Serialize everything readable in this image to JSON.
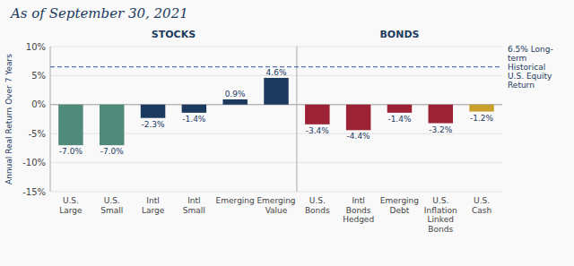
{
  "chart_data": {
    "type": "bar",
    "title": "As of September 30, 2021",
    "categories": [
      "U.S.\nLarge",
      "U.S.\nSmall",
      "Intl\nLarge",
      "Intl\nSmall",
      "Emerging",
      "Emerging\nValue",
      "U.S.\nBonds",
      "Intl\nBonds\nHedged",
      "Emerging\nDebt",
      "U.S.\nInflation\nLinked\nBonds",
      "U.S.\nCash"
    ],
    "values": [
      -7.0,
      -7.0,
      -2.3,
      -1.4,
      0.9,
      4.6,
      -3.4,
      -4.4,
      -1.4,
      -3.2,
      -1.2
    ],
    "value_labels": [
      "-7.0%",
      "-7.0%",
      "-2.3%",
      "-1.4%",
      "0.9%",
      "4.6%",
      "-3.4%",
      "-4.4%",
      "-1.4%",
      "-3.2%",
      "-1.2%"
    ],
    "colors": [
      "#4f8a7a",
      "#4f8a7a",
      "#1c3a5e",
      "#1c3a5e",
      "#1c3a5e",
      "#1c3a5e",
      "#9b2335",
      "#9b2335",
      "#9b2335",
      "#9b2335",
      "#c8a02a"
    ],
    "ylabel": "Annual Real Return Over 7 Years",
    "ylim": [
      -15,
      10
    ],
    "yticks": [
      {
        "value": -15,
        "label": "-15%"
      },
      {
        "value": -10,
        "label": "-10%"
      },
      {
        "value": -5,
        "label": "-5%"
      },
      {
        "value": 0,
        "label": "0%"
      },
      {
        "value": 5,
        "label": "5%"
      },
      {
        "value": 10,
        "label": "10%"
      }
    ],
    "grid": true,
    "data_labels": true,
    "hline": {
      "value": 6.5,
      "label": "6.5% Long-\nterm\nHistorical\nU.S. Equity\nReturn",
      "color": "#5577aa"
    },
    "divider": 5.5,
    "annotations": [
      {
        "text": "STOCKS",
        "x": 2.5
      },
      {
        "text": "BONDS",
        "x": 8.0
      }
    ]
  }
}
